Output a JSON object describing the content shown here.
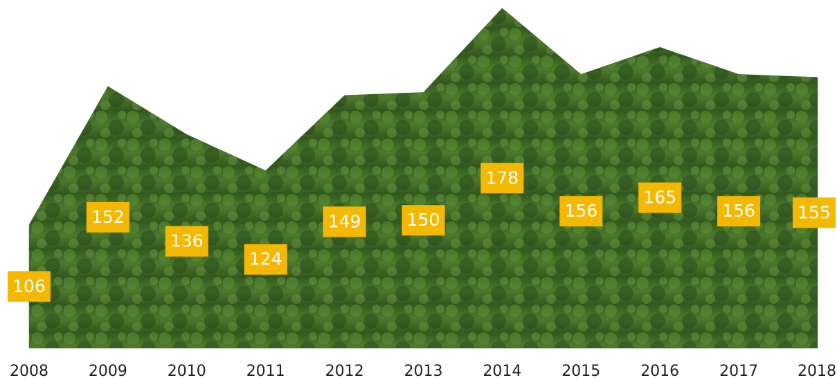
{
  "chart_data": {
    "type": "area",
    "categories": [
      "2008",
      "2009",
      "2010",
      "2011",
      "2012",
      "2013",
      "2014",
      "2015",
      "2016",
      "2017",
      "2018"
    ],
    "values": [
      106,
      152,
      136,
      124,
      149,
      150,
      178,
      156,
      165,
      156,
      155
    ],
    "ylim": [
      65,
      180
    ],
    "color": "#3f6b22",
    "label_color": "#f5b800"
  }
}
